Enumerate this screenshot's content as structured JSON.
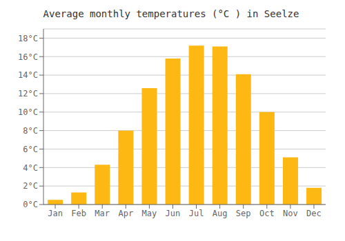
{
  "chart_data": {
    "type": "bar",
    "title": "Average monthly temperatures (°C ) in Seelze",
    "categories": [
      "Jan",
      "Feb",
      "Mar",
      "Apr",
      "May",
      "Jun",
      "Jul",
      "Aug",
      "Sep",
      "Oct",
      "Nov",
      "Dec"
    ],
    "values": [
      0.5,
      1.3,
      4.3,
      8.0,
      12.6,
      15.8,
      17.2,
      17.1,
      14.1,
      10.0,
      5.1,
      1.8
    ],
    "color": "#FDB813",
    "ylim": [
      0,
      19
    ],
    "yticks": [
      {
        "value": 0,
        "label": "0°C"
      },
      {
        "value": 2,
        "label": "2°C"
      },
      {
        "value": 4,
        "label": "4°C"
      },
      {
        "value": 6,
        "label": "6°C"
      },
      {
        "value": 8,
        "label": "8°C"
      },
      {
        "value": 10,
        "label": "10°C"
      },
      {
        "value": 12,
        "label": "12°C"
      },
      {
        "value": 14,
        "label": "14°C"
      },
      {
        "value": 16,
        "label": "16°C"
      },
      {
        "value": 18,
        "label": "18°C"
      }
    ],
    "grid": true
  }
}
